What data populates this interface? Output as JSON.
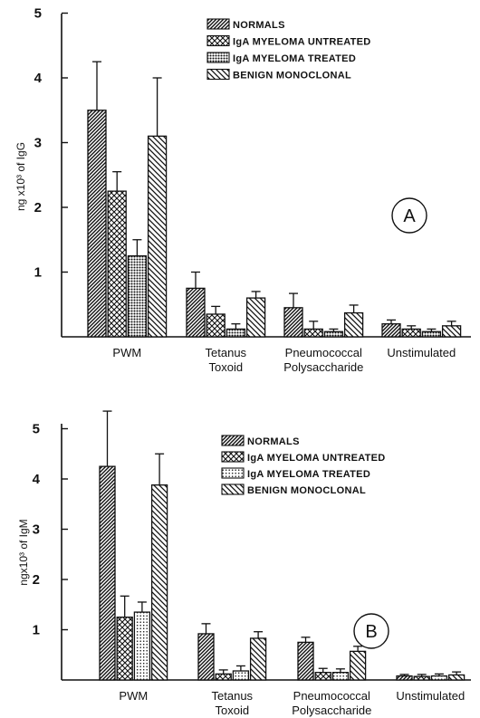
{
  "chart_data": [
    {
      "type": "bar",
      "panel_label": "A",
      "ylabel": "ng x10³ of IgG",
      "ylim": [
        0,
        5
      ],
      "yticks": [
        "1",
        "2",
        "3",
        "4",
        "5"
      ],
      "categories": [
        "PWM",
        "Tetanus Toxoid",
        "Pneumococcal Polysaccharide",
        "Unstimulated"
      ],
      "series": [
        {
          "name": "NORMALS",
          "pattern": "diag-dense",
          "values": [
            3.5,
            0.75,
            0.45,
            0.2
          ],
          "errors": [
            0.75,
            0.25,
            0.22,
            0.06
          ]
        },
        {
          "name": "IgA MYELOMA UNTREATED",
          "pattern": "crosshatch",
          "values": [
            2.25,
            0.35,
            0.12,
            0.12
          ],
          "errors": [
            0.3,
            0.12,
            0.12,
            0.05
          ]
        },
        {
          "name": "IgA MYELOMA TREATED",
          "pattern": "grid",
          "values": [
            1.25,
            0.12,
            0.08,
            0.08
          ],
          "errors": [
            0.25,
            0.08,
            0.04,
            0.04
          ]
        },
        {
          "name": "BENIGN MONOCLONAL",
          "pattern": "diag-back",
          "values": [
            3.1,
            0.6,
            0.37,
            0.17
          ],
          "errors": [
            0.9,
            0.1,
            0.12,
            0.07
          ]
        }
      ],
      "legend": [
        "NORMALS",
        "IgA MYELOMA UNTREATED",
        "IgA MYELOMA TREATED",
        "BENIGN MONOCLONAL"
      ]
    },
    {
      "type": "bar",
      "panel_label": "B",
      "ylabel": "ngx10³ of IgM",
      "ylim": [
        0,
        5.5
      ],
      "yticks": [
        "1",
        "2",
        "3",
        "4",
        "5"
      ],
      "categories": [
        "PWM",
        "Tetanus Toxoid",
        "Pneumococcal Polysaccharide",
        "Unstimulated"
      ],
      "series": [
        {
          "name": "NORMALS",
          "pattern": "diag-dense",
          "values": [
            4.25,
            0.92,
            0.75,
            0.08
          ],
          "errors": [
            1.1,
            0.2,
            0.1,
            0.03
          ]
        },
        {
          "name": "IgA MYELOMA UNTREATED",
          "pattern": "crosshatch",
          "values": [
            1.25,
            0.12,
            0.15,
            0.07
          ],
          "errors": [
            0.42,
            0.08,
            0.08,
            0.04
          ]
        },
        {
          "name": "IgA MYELOMA TREATED",
          "pattern": "dots",
          "values": [
            1.35,
            0.18,
            0.15,
            0.08
          ],
          "errors": [
            0.2,
            0.1,
            0.07,
            0.04
          ]
        },
        {
          "name": "BENIGN MONOCLONAL",
          "pattern": "diag-back",
          "values": [
            3.88,
            0.83,
            0.57,
            0.1
          ],
          "errors": [
            0.62,
            0.13,
            0.1,
            0.06
          ]
        }
      ],
      "legend": [
        "NORMALS",
        "IgA MYELOMA UNTREATED",
        "IgA MYELOMA TREATED",
        "BENIGN MONOCLONAL"
      ]
    }
  ],
  "category_lines": [
    [
      "PWM"
    ],
    [
      "Tetanus",
      "Toxoid"
    ],
    [
      "Pneumococcal",
      "Polysaccharide"
    ],
    [
      "Unstimulated"
    ]
  ]
}
